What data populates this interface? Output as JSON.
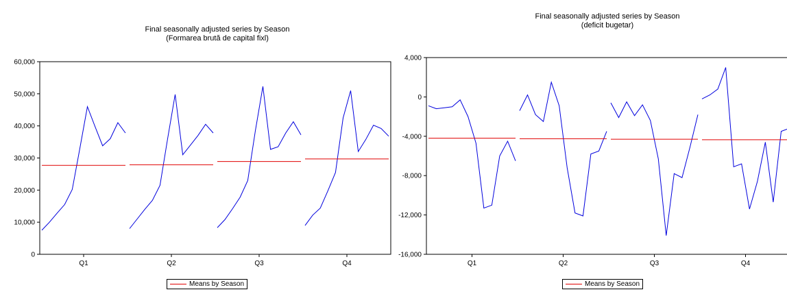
{
  "chart_data": [
    {
      "type": "line",
      "title": "Final seasonally adjusted series by Season",
      "subtitle": "(Formarea brută de capital fixl)",
      "categories": [
        "Q1",
        "Q2",
        "Q3",
        "Q4"
      ],
      "ylim": [
        0,
        60000
      ],
      "yticks": [
        0,
        10000,
        20000,
        30000,
        40000,
        50000,
        60000
      ],
      "ytick_labels": [
        "0",
        "10,000",
        "20,000",
        "30,000",
        "40,000",
        "50,000",
        "60,000"
      ],
      "grid": false,
      "series": [
        {
          "color": "#0000dd",
          "groups": [
            [
              7500,
              10000,
              12800,
              15500,
              20200,
              33000,
              46000,
              39800,
              33800,
              36000,
              41000,
              37800
            ],
            [
              8000,
              11000,
              14000,
              16800,
              21500,
              36000,
              49800,
              31000,
              34000,
              37000,
              40500,
              37800
            ],
            [
              8300,
              10800,
              14200,
              17800,
              23000,
              38500,
              52300,
              32700,
              33500,
              37800,
              41300,
              37200
            ],
            [
              9000,
              12200,
              14400,
              19800,
              25500,
              42500,
              51000,
              32000,
              35800,
              40200,
              39200,
              36800
            ]
          ]
        },
        {
          "name": "Means by Season",
          "color": "#e00000",
          "values": [
            27700,
            27900,
            28900,
            29700
          ]
        }
      ],
      "legend": {
        "placement": "bottom-center",
        "label": "Means by Season"
      }
    },
    {
      "type": "line",
      "title": "Final seasonally adjusted series by Season",
      "subtitle": "(deficit bugetar)",
      "categories": [
        "Q1",
        "Q2",
        "Q3",
        "Q4"
      ],
      "ylim": [
        -16000,
        4000
      ],
      "yticks": [
        -16000,
        -12000,
        -8000,
        -4000,
        0,
        4000
      ],
      "ytick_labels": [
        "-16,000",
        "-12,000",
        "-8,000",
        "-4,000",
        "0",
        "4,000"
      ],
      "grid": false,
      "series": [
        {
          "color": "#0000dd",
          "groups": [
            [
              -900,
              -1200,
              -1100,
              -1000,
              -300,
              -2000,
              -4700,
              -11300,
              -11000,
              -6000,
              -4500,
              -6500
            ],
            [
              -1400,
              200,
              -1800,
              -2500,
              1500,
              -900,
              -7200,
              -11800,
              -12100,
              -5800,
              -5500,
              -3500
            ],
            [
              -600,
              -2100,
              -500,
              -1900,
              -800,
              -2400,
              -6300,
              -14100,
              -7800,
              -8200,
              -5100,
              -1800
            ],
            [
              -200,
              200,
              800,
              3000,
              -7100,
              -6800,
              -11400,
              -8600,
              -4600,
              -10700,
              -3500,
              -3200
            ]
          ]
        },
        {
          "name": "Means by Season",
          "color": "#e00000",
          "values": [
            -4200,
            -4250,
            -4300,
            -4350
          ]
        }
      ],
      "legend": {
        "placement": "bottom-center",
        "label": "Means by Season"
      }
    }
  ]
}
